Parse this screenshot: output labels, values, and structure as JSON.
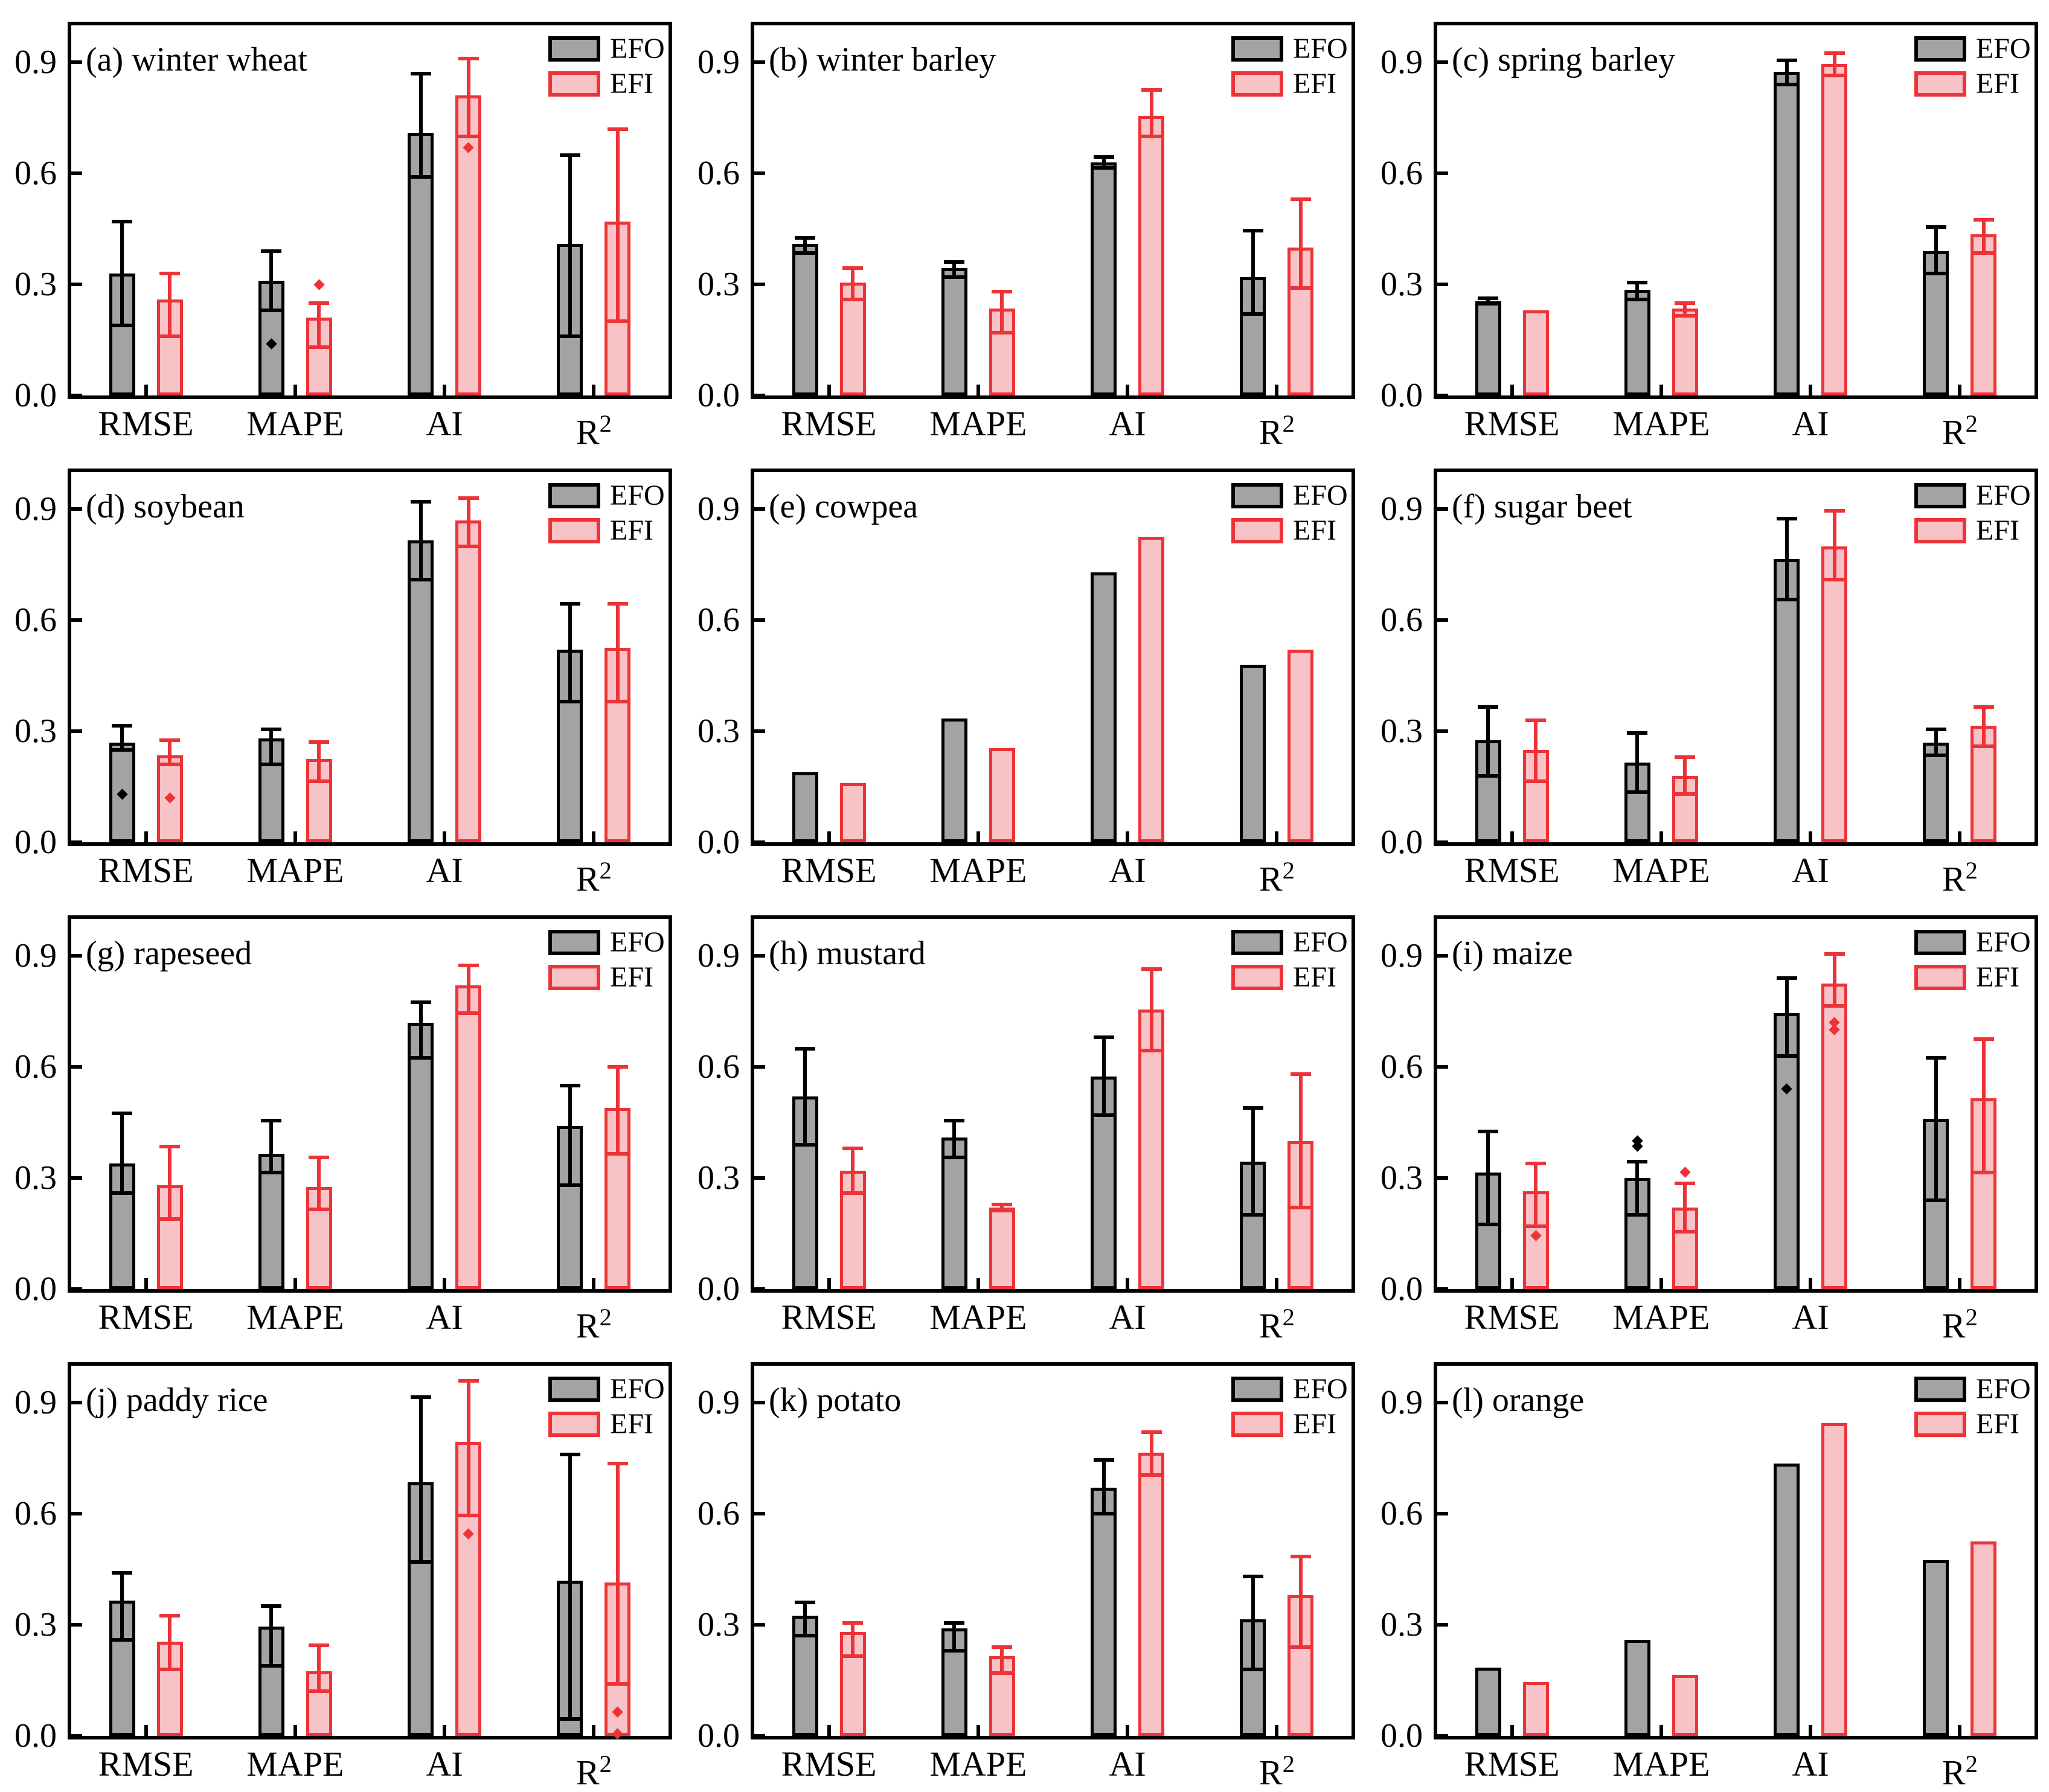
{
  "figure": {
    "ytick_labels": [
      "0.0",
      "0.3",
      "0.6",
      "0.9"
    ],
    "yticks": [
      0.0,
      0.3,
      0.6,
      0.9
    ],
    "legend": {
      "efo_label": "EFO",
      "efi_label": "EFI"
    },
    "colors": {
      "efo_fill": "#a3a3a3",
      "efo_edge": "#000000",
      "efi_fill": "#f8c3c6",
      "efi_edge": "#ee3338",
      "text": "#000000"
    }
  },
  "chart_data": [
    {
      "type": "bar",
      "label": "(a) winter wheat",
      "categories": [
        "RMSE",
        "MAPE",
        "AI",
        "R²"
      ],
      "ylim": [
        0,
        1.0
      ],
      "series": [
        {
          "name": "EFO",
          "values": [
            0.33,
            0.31,
            0.71,
            0.41
          ],
          "err_low": [
            0.19,
            0.23,
            0.59,
            0.16
          ],
          "err_high": [
            0.47,
            0.39,
            0.87,
            0.65
          ],
          "outliers": [
            [],
            [
              0.14
            ],
            [],
            []
          ]
        },
        {
          "name": "EFI",
          "values": [
            0.26,
            0.21,
            0.81,
            0.47
          ],
          "err_low": [
            0.16,
            0.13,
            0.7,
            0.2
          ],
          "err_high": [
            0.33,
            0.25,
            0.91,
            0.72
          ],
          "outliers": [
            [],
            [
              0.3
            ],
            [
              0.67
            ],
            []
          ]
        }
      ]
    },
    {
      "type": "bar",
      "label": "(b) winter barley",
      "categories": [
        "RMSE",
        "MAPE",
        "AI",
        "R²"
      ],
      "ylim": [
        0,
        1.0
      ],
      "series": [
        {
          "name": "EFO",
          "values": [
            0.41,
            0.345,
            0.63,
            0.32
          ],
          "err_low": [
            0.385,
            0.32,
            0.615,
            0.22
          ],
          "err_high": [
            0.425,
            0.36,
            0.645,
            0.445
          ],
          "outliers": [
            [],
            [],
            [],
            []
          ]
        },
        {
          "name": "EFI",
          "values": [
            0.305,
            0.235,
            0.755,
            0.4
          ],
          "err_low": [
            0.26,
            0.17,
            0.7,
            0.29
          ],
          "err_high": [
            0.345,
            0.28,
            0.825,
            0.53
          ],
          "outliers": [
            [],
            [],
            [],
            []
          ]
        }
      ]
    },
    {
      "type": "bar",
      "label": "(c) spring barley",
      "categories": [
        "RMSE",
        "MAPE",
        "AI",
        "R²"
      ],
      "ylim": [
        0,
        1.0
      ],
      "series": [
        {
          "name": "EFO",
          "values": [
            0.255,
            0.285,
            0.875,
            0.39
          ],
          "err_low": [
            0.248,
            0.26,
            0.84,
            0.33
          ],
          "err_high": [
            0.262,
            0.305,
            0.905,
            0.455
          ],
          "outliers": [
            [],
            [],
            [],
            []
          ]
        },
        {
          "name": "EFI",
          "values": [
            0.23,
            0.235,
            0.895,
            0.435
          ],
          "err_low": [
            null,
            0.215,
            0.865,
            0.385
          ],
          "err_high": [
            null,
            0.25,
            0.925,
            0.475
          ],
          "outliers": [
            [],
            [],
            [],
            []
          ]
        }
      ]
    },
    {
      "type": "bar",
      "label": "(d) soybean",
      "categories": [
        "RMSE",
        "MAPE",
        "AI",
        "R²"
      ],
      "ylim": [
        0,
        1.0
      ],
      "series": [
        {
          "name": "EFO",
          "values": [
            0.27,
            0.28,
            0.815,
            0.52
          ],
          "err_low": [
            0.25,
            0.21,
            0.71,
            0.38
          ],
          "err_high": [
            0.315,
            0.305,
            0.92,
            0.645
          ],
          "outliers": [
            [
              0.13
            ],
            [],
            [],
            []
          ]
        },
        {
          "name": "EFI",
          "values": [
            0.235,
            0.225,
            0.87,
            0.525
          ],
          "err_low": [
            0.21,
            0.165,
            0.8,
            0.38
          ],
          "err_high": [
            0.275,
            0.27,
            0.93,
            0.645
          ],
          "outliers": [
            [
              0.12
            ],
            [],
            [],
            []
          ]
        }
      ]
    },
    {
      "type": "bar",
      "label": "(e) cowpea",
      "categories": [
        "RMSE",
        "MAPE",
        "AI",
        "R²"
      ],
      "ylim": [
        0,
        1.0
      ],
      "series": [
        {
          "name": "EFO",
          "values": [
            0.19,
            0.335,
            0.73,
            0.48
          ],
          "err_low": null,
          "err_high": null,
          "outliers": [
            [],
            [],
            [],
            []
          ]
        },
        {
          "name": "EFI",
          "values": [
            0.16,
            0.255,
            0.825,
            0.52
          ],
          "err_low": null,
          "err_high": null,
          "outliers": [
            [],
            [],
            [],
            []
          ]
        }
      ]
    },
    {
      "type": "bar",
      "label": "(f) sugar beet",
      "categories": [
        "RMSE",
        "MAPE",
        "AI",
        "R²"
      ],
      "ylim": [
        0,
        1.0
      ],
      "series": [
        {
          "name": "EFO",
          "values": [
            0.275,
            0.215,
            0.765,
            0.27
          ],
          "err_low": [
            0.18,
            0.135,
            0.655,
            0.235
          ],
          "err_high": [
            0.365,
            0.295,
            0.875,
            0.305
          ],
          "outliers": [
            [],
            [],
            [],
            []
          ]
        },
        {
          "name": "EFI",
          "values": [
            0.25,
            0.18,
            0.8,
            0.315
          ],
          "err_low": [
            0.165,
            0.13,
            0.71,
            0.26
          ],
          "err_high": [
            0.33,
            0.23,
            0.895,
            0.365
          ],
          "outliers": [
            [],
            [],
            [],
            []
          ]
        }
      ]
    },
    {
      "type": "bar",
      "label": "(g) rapeseed",
      "categories": [
        "RMSE",
        "MAPE",
        "AI",
        "R²"
      ],
      "ylim": [
        0,
        1.0
      ],
      "series": [
        {
          "name": "EFO",
          "values": [
            0.34,
            0.365,
            0.72,
            0.44
          ],
          "err_low": [
            0.26,
            0.315,
            0.625,
            0.28
          ],
          "err_high": [
            0.475,
            0.455,
            0.775,
            0.55
          ],
          "outliers": [
            [],
            [],
            [],
            []
          ]
        },
        {
          "name": "EFI",
          "values": [
            0.28,
            0.275,
            0.82,
            0.49
          ],
          "err_low": [
            0.19,
            0.215,
            0.745,
            0.365
          ],
          "err_high": [
            0.385,
            0.355,
            0.875,
            0.6
          ],
          "outliers": [
            [],
            [],
            [],
            []
          ]
        }
      ]
    },
    {
      "type": "bar",
      "label": "(h) mustard",
      "categories": [
        "RMSE",
        "MAPE",
        "AI",
        "R²"
      ],
      "ylim": [
        0,
        1.0
      ],
      "series": [
        {
          "name": "EFO",
          "values": [
            0.52,
            0.41,
            0.575,
            0.345
          ],
          "err_low": [
            0.39,
            0.355,
            0.47,
            0.2
          ],
          "err_high": [
            0.65,
            0.455,
            0.68,
            0.49
          ],
          "outliers": [
            [],
            [],
            [],
            []
          ]
        },
        {
          "name": "EFI",
          "values": [
            0.32,
            0.22,
            0.755,
            0.4
          ],
          "err_low": [
            0.26,
            0.212,
            0.645,
            0.22
          ],
          "err_high": [
            0.38,
            0.228,
            0.865,
            0.58
          ],
          "outliers": [
            [],
            [],
            [],
            []
          ]
        }
      ]
    },
    {
      "type": "bar",
      "label": "(i) maize",
      "categories": [
        "RMSE",
        "MAPE",
        "AI",
        "R²"
      ],
      "ylim": [
        0,
        1.0
      ],
      "series": [
        {
          "name": "EFO",
          "values": [
            0.315,
            0.3,
            0.745,
            0.46
          ],
          "err_low": [
            0.175,
            0.2,
            0.63,
            0.24
          ],
          "err_high": [
            0.425,
            0.345,
            0.84,
            0.625
          ],
          "outliers": [
            [],
            [
              0.385,
              0.4
            ],
            [
              0.54
            ],
            []
          ]
        },
        {
          "name": "EFI",
          "values": [
            0.265,
            0.22,
            0.825,
            0.515
          ],
          "err_low": [
            0.17,
            0.155,
            0.765,
            0.315
          ],
          "err_high": [
            0.34,
            0.285,
            0.905,
            0.675
          ],
          "outliers": [
            [
              0.145
            ],
            [
              0.315
            ],
            [
              0.7,
              0.72
            ],
            []
          ]
        }
      ]
    },
    {
      "type": "bar",
      "label": "(j) paddy rice",
      "categories": [
        "RMSE",
        "MAPE",
        "AI",
        "R²"
      ],
      "ylim": [
        0,
        1.0
      ],
      "series": [
        {
          "name": "EFO",
          "values": [
            0.365,
            0.295,
            0.685,
            0.42
          ],
          "err_low": [
            0.26,
            0.19,
            0.47,
            0.045
          ],
          "err_high": [
            0.44,
            0.35,
            0.915,
            0.76
          ],
          "outliers": [
            [],
            [],
            [],
            []
          ]
        },
        {
          "name": "EFI",
          "values": [
            0.255,
            0.175,
            0.795,
            0.415
          ],
          "err_low": [
            0.18,
            0.12,
            0.595,
            0.14
          ],
          "err_high": [
            0.325,
            0.245,
            0.96,
            0.735
          ],
          "outliers": [
            [],
            [],
            [
              0.545
            ],
            [
              0.065,
              0.005
            ]
          ]
        }
      ]
    },
    {
      "type": "bar",
      "label": "(k) potato",
      "categories": [
        "RMSE",
        "MAPE",
        "AI",
        "R²"
      ],
      "ylim": [
        0,
        1.0
      ],
      "series": [
        {
          "name": "EFO",
          "values": [
            0.325,
            0.29,
            0.67,
            0.315
          ],
          "err_low": [
            0.27,
            0.23,
            0.6,
            0.18
          ],
          "err_high": [
            0.36,
            0.305,
            0.745,
            0.43
          ],
          "outliers": [
            [],
            [],
            [],
            []
          ]
        },
        {
          "name": "EFI",
          "values": [
            0.28,
            0.215,
            0.765,
            0.38
          ],
          "err_low": [
            0.215,
            0.17,
            0.705,
            0.24
          ],
          "err_high": [
            0.305,
            0.24,
            0.82,
            0.485
          ],
          "outliers": [
            [],
            [],
            [],
            []
          ]
        }
      ]
    },
    {
      "type": "bar",
      "label": "(l) orange",
      "categories": [
        "RMSE",
        "MAPE",
        "AI",
        "R²"
      ],
      "ylim": [
        0,
        1.0
      ],
      "series": [
        {
          "name": "EFO",
          "values": [
            0.185,
            0.26,
            0.735,
            0.475
          ],
          "err_low": null,
          "err_high": null,
          "outliers": [
            [],
            [],
            [],
            []
          ]
        },
        {
          "name": "EFI",
          "values": [
            0.145,
            0.165,
            0.845,
            0.525
          ],
          "err_low": null,
          "err_high": null,
          "outliers": [
            [],
            [],
            [],
            []
          ]
        }
      ]
    }
  ]
}
